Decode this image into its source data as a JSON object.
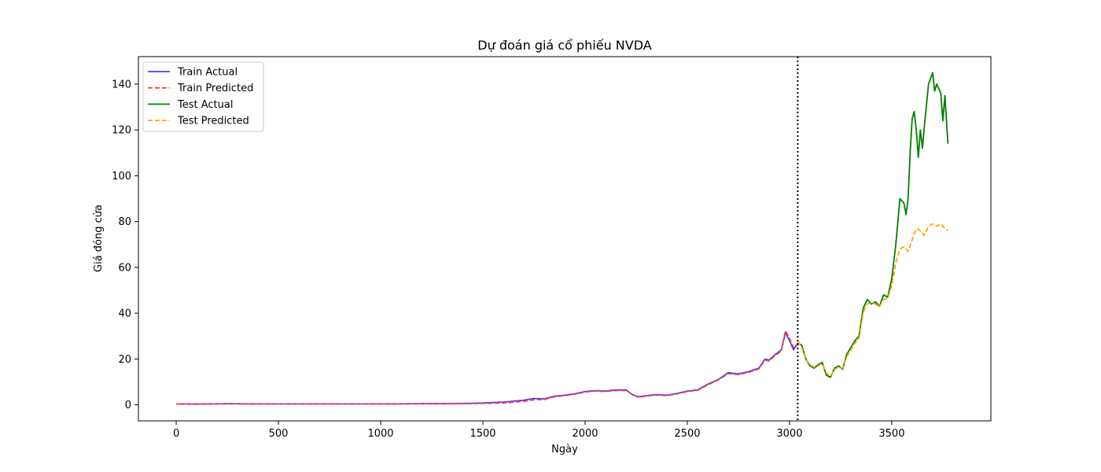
{
  "chart_data": {
    "type": "line",
    "title": "Dự đoán giá cổ phiếu NVDA",
    "xlabel": "Ngày",
    "ylabel": "Giá đóng cửa",
    "xlim": [
      -185,
      3985
    ],
    "ylim": [
      -7,
      152
    ],
    "xticks": [
      0,
      500,
      1000,
      1500,
      2000,
      2500,
      3000,
      3500
    ],
    "yticks": [
      0,
      20,
      40,
      60,
      80,
      100,
      120,
      140
    ],
    "grid": false,
    "legend": "top-left",
    "split_x": 3040,
    "series": [
      {
        "name": "Train Actual",
        "color": "#4040ff",
        "style": "solid",
        "points": [
          [
            0,
            0.4
          ],
          [
            100,
            0.3
          ],
          [
            250,
            0.5
          ],
          [
            400,
            0.4
          ],
          [
            600,
            0.4
          ],
          [
            800,
            0.4
          ],
          [
            1000,
            0.4
          ],
          [
            1200,
            0.5
          ],
          [
            1400,
            0.6
          ],
          [
            1500,
            0.8
          ],
          [
            1600,
            1.2
          ],
          [
            1700,
            2.0
          ],
          [
            1750,
            2.8
          ],
          [
            1800,
            2.6
          ],
          [
            1850,
            3.8
          ],
          [
            1900,
            4.2
          ],
          [
            1950,
            4.8
          ],
          [
            2000,
            5.8
          ],
          [
            2050,
            6.2
          ],
          [
            2100,
            6.0
          ],
          [
            2150,
            6.5
          ],
          [
            2200,
            6.5
          ],
          [
            2230,
            4.5
          ],
          [
            2260,
            3.5
          ],
          [
            2300,
            4.0
          ],
          [
            2350,
            4.5
          ],
          [
            2400,
            4.2
          ],
          [
            2450,
            5.0
          ],
          [
            2500,
            6.0
          ],
          [
            2550,
            6.5
          ],
          [
            2600,
            9.0
          ],
          [
            2650,
            11.0
          ],
          [
            2700,
            14.0
          ],
          [
            2750,
            13.5
          ],
          [
            2800,
            14.5
          ],
          [
            2850,
            16.0
          ],
          [
            2880,
            20.0
          ],
          [
            2900,
            19.5
          ],
          [
            2930,
            22.0
          ],
          [
            2960,
            24.0
          ],
          [
            2980,
            31.5
          ],
          [
            3000,
            28.0
          ],
          [
            3020,
            24.0
          ],
          [
            3040,
            27.0
          ]
        ]
      },
      {
        "name": "Train Predicted",
        "color": "#ff4040",
        "style": "dashed",
        "points": [
          [
            0,
            0.4
          ],
          [
            100,
            0.3
          ],
          [
            250,
            0.5
          ],
          [
            400,
            0.4
          ],
          [
            600,
            0.4
          ],
          [
            800,
            0.4
          ],
          [
            1000,
            0.4
          ],
          [
            1200,
            0.5
          ],
          [
            1400,
            0.5
          ],
          [
            1500,
            0.6
          ],
          [
            1600,
            0.8
          ],
          [
            1700,
            1.5
          ],
          [
            1750,
            2.2
          ],
          [
            1800,
            2.3
          ],
          [
            1850,
            3.5
          ],
          [
            1900,
            4.0
          ],
          [
            1950,
            4.6
          ],
          [
            2000,
            5.6
          ],
          [
            2050,
            6.0
          ],
          [
            2100,
            5.8
          ],
          [
            2150,
            6.3
          ],
          [
            2200,
            6.3
          ],
          [
            2230,
            4.6
          ],
          [
            2260,
            3.3
          ],
          [
            2300,
            3.8
          ],
          [
            2350,
            4.3
          ],
          [
            2400,
            4.0
          ],
          [
            2450,
            4.8
          ],
          [
            2500,
            5.8
          ],
          [
            2550,
            6.3
          ],
          [
            2600,
            8.7
          ],
          [
            2650,
            10.8
          ],
          [
            2700,
            13.6
          ],
          [
            2750,
            13.2
          ],
          [
            2800,
            14.2
          ],
          [
            2850,
            15.7
          ],
          [
            2880,
            19.5
          ],
          [
            2900,
            19.2
          ],
          [
            2930,
            21.5
          ],
          [
            2960,
            23.5
          ],
          [
            2980,
            32.5
          ],
          [
            3000,
            29.0
          ],
          [
            3020,
            25.0
          ],
          [
            3040,
            26.5
          ]
        ]
      },
      {
        "name": "Test Actual",
        "color": "#008000",
        "style": "solid",
        "points": [
          [
            3040,
            27.0
          ],
          [
            3060,
            26.0
          ],
          [
            3080,
            20.0
          ],
          [
            3100,
            17.0
          ],
          [
            3120,
            16.0
          ],
          [
            3140,
            17.5
          ],
          [
            3160,
            18.5
          ],
          [
            3180,
            13.0
          ],
          [
            3200,
            12.0
          ],
          [
            3220,
            16.0
          ],
          [
            3240,
            17.0
          ],
          [
            3260,
            15.5
          ],
          [
            3280,
            22.0
          ],
          [
            3300,
            25.0
          ],
          [
            3320,
            28.0
          ],
          [
            3340,
            30.0
          ],
          [
            3360,
            42.0
          ],
          [
            3380,
            46.0
          ],
          [
            3400,
            44.0
          ],
          [
            3420,
            45.0
          ],
          [
            3440,
            43.0
          ],
          [
            3460,
            48.0
          ],
          [
            3480,
            47.0
          ],
          [
            3500,
            55.0
          ],
          [
            3520,
            70.0
          ],
          [
            3540,
            90.0
          ],
          [
            3560,
            88.0
          ],
          [
            3570,
            83.0
          ],
          [
            3580,
            90.0
          ],
          [
            3590,
            110.0
          ],
          [
            3600,
            125.0
          ],
          [
            3610,
            128.0
          ],
          [
            3620,
            120.0
          ],
          [
            3630,
            108.0
          ],
          [
            3640,
            120.0
          ],
          [
            3650,
            112.0
          ],
          [
            3660,
            122.0
          ],
          [
            3680,
            140.0
          ],
          [
            3700,
            145.0
          ],
          [
            3710,
            137.0
          ],
          [
            3720,
            140.0
          ],
          [
            3740,
            136.0
          ],
          [
            3750,
            124.0
          ],
          [
            3760,
            135.0
          ],
          [
            3775,
            114.0
          ]
        ]
      },
      {
        "name": "Test Predicted",
        "color": "#ffa500",
        "style": "dashed",
        "points": [
          [
            3040,
            28.0
          ],
          [
            3060,
            25.0
          ],
          [
            3080,
            20.0
          ],
          [
            3100,
            17.5
          ],
          [
            3120,
            16.5
          ],
          [
            3140,
            17.0
          ],
          [
            3160,
            18.0
          ],
          [
            3180,
            14.0
          ],
          [
            3200,
            12.5
          ],
          [
            3220,
            15.5
          ],
          [
            3240,
            16.5
          ],
          [
            3260,
            16.0
          ],
          [
            3280,
            21.0
          ],
          [
            3300,
            24.0
          ],
          [
            3320,
            27.0
          ],
          [
            3340,
            29.0
          ],
          [
            3360,
            40.0
          ],
          [
            3380,
            44.0
          ],
          [
            3400,
            44.5
          ],
          [
            3420,
            44.0
          ],
          [
            3440,
            43.0
          ],
          [
            3460,
            46.0
          ],
          [
            3480,
            46.5
          ],
          [
            3500,
            52.0
          ],
          [
            3520,
            62.0
          ],
          [
            3540,
            68.0
          ],
          [
            3560,
            69.0
          ],
          [
            3580,
            67.0
          ],
          [
            3600,
            72.0
          ],
          [
            3620,
            77.0
          ],
          [
            3640,
            76.0
          ],
          [
            3660,
            74.0
          ],
          [
            3680,
            78.0
          ],
          [
            3700,
            79.0
          ],
          [
            3720,
            78.0
          ],
          [
            3740,
            79.0
          ],
          [
            3760,
            77.0
          ],
          [
            3775,
            76.0
          ]
        ]
      }
    ]
  }
}
